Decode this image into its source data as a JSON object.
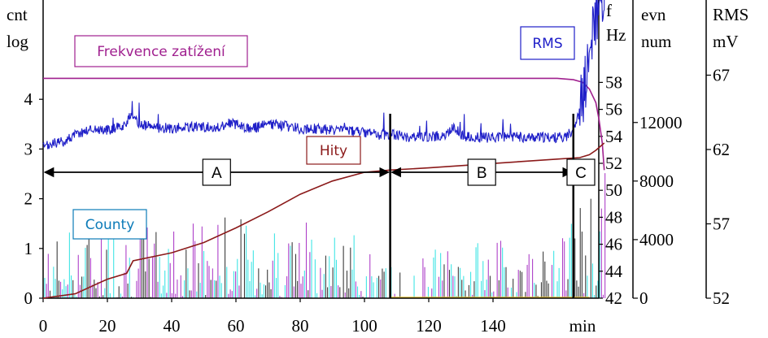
{
  "chart_data": {
    "type": "line",
    "title": "",
    "xlabel": "min",
    "x_ticks": [
      0,
      20,
      40,
      60,
      80,
      100,
      120,
      140
    ],
    "xlim": [
      0,
      175
    ],
    "axes": {
      "cnt_log": {
        "title_lines": [
          "cnt",
          "log"
        ],
        "range": [
          0,
          5.6
        ],
        "ticks": [
          0,
          1,
          2,
          3,
          4
        ]
      },
      "freq": {
        "title_lines": [
          "f",
          "Hz"
        ],
        "range": [
          42,
          63
        ],
        "ticks": [
          42,
          44,
          46,
          48,
          50,
          52,
          54,
          56,
          58
        ]
      },
      "evn": {
        "title_lines": [
          "evn",
          "num"
        ],
        "range": [
          0,
          18000
        ],
        "ticks": [
          0,
          4000,
          8000,
          12000
        ]
      },
      "rms": {
        "title_lines": [
          "RMS",
          "mV"
        ],
        "range": [
          52,
          72.5
        ],
        "ticks": [
          52,
          57,
          62,
          67
        ]
      }
    },
    "series": [
      {
        "name": "Frekvence zatížení",
        "axis": "freq",
        "color": "#a0208f",
        "x": [
          0,
          20,
          60,
          100,
          140,
          160,
          165,
          168,
          170,
          172,
          173,
          174,
          175
        ],
        "y": [
          58.3,
          58.3,
          58.3,
          58.3,
          58.3,
          58.3,
          58.2,
          58.0,
          57.5,
          56.5,
          55.2,
          53.5,
          51.5
        ]
      },
      {
        "name": "RMS",
        "axis": "rms",
        "color": "#1f1fc8",
        "x": [
          0,
          3,
          6,
          10,
          15,
          20,
          25,
          27,
          30,
          35,
          40,
          45,
          50,
          55,
          58,
          60,
          65,
          70,
          75,
          80,
          85,
          90,
          95,
          100,
          105,
          110,
          115,
          120,
          125,
          128,
          130,
          135,
          140,
          145,
          150,
          155,
          160,
          163,
          165,
          167,
          169,
          171,
          173,
          175
        ],
        "y": [
          62.1,
          62.4,
          62.5,
          63.0,
          63.4,
          63.3,
          63.6,
          64.2,
          63.7,
          63.5,
          63.4,
          63.5,
          63.5,
          63.5,
          63.8,
          63.7,
          63.4,
          63.7,
          63.6,
          63.4,
          63.4,
          63.3,
          63.3,
          63.1,
          63.0,
          63.0,
          62.8,
          62.9,
          62.9,
          63.6,
          62.9,
          62.8,
          62.8,
          62.9,
          62.8,
          62.8,
          62.8,
          62.9,
          63.4,
          64.5,
          66.5,
          69.5,
          72.0,
          72.5
        ]
      },
      {
        "name": "Hity",
        "axis": "evn",
        "color": "#8b1a1a",
        "x": [
          0,
          10,
          20,
          26,
          28,
          40,
          50,
          60,
          70,
          80,
          90,
          100,
          108,
          120,
          140,
          160,
          167,
          170,
          172,
          175
        ],
        "y": [
          0,
          300,
          1300,
          1700,
          2550,
          3100,
          3800,
          4800,
          5900,
          7100,
          8000,
          8600,
          8750,
          8900,
          9200,
          9500,
          9600,
          9800,
          10100,
          10600
        ]
      }
    ],
    "counts": {
      "name": "County",
      "axis": "cnt_log",
      "color": "#0c7bb8",
      "bar_colors": [
        "#1fe0e0",
        "#a020c0",
        "#1a1a1a",
        "#e8c030"
      ],
      "bins_per_minute": [
        [
          0,
          1.0
        ],
        [
          10,
          1.6
        ],
        [
          20,
          1.7
        ],
        [
          40,
          1.6
        ],
        [
          60,
          1.7
        ],
        [
          80,
          1.6
        ],
        [
          95,
          1.4
        ],
        [
          107,
          0.6
        ],
        [
          120,
          1.0
        ],
        [
          140,
          1.2
        ],
        [
          160,
          1.0
        ],
        [
          168,
          2.2
        ],
        [
          175,
          2.6
        ]
      ]
    },
    "segments": [
      {
        "label": "A",
        "from": 0,
        "to": 108
      },
      {
        "label": "B",
        "from": 108,
        "to": 165
      },
      {
        "label": "C",
        "from": 165,
        "to": 174
      }
    ],
    "dividers": [
      108,
      165
    ]
  }
}
